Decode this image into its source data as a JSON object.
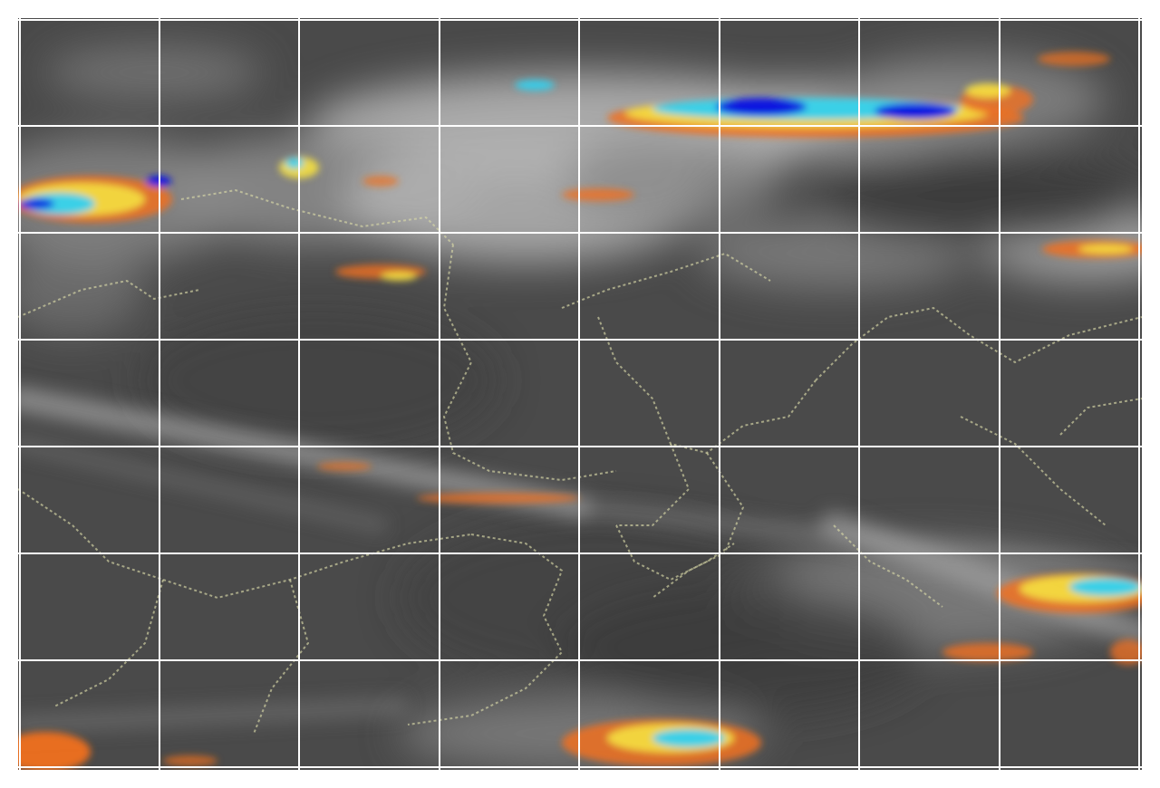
{
  "map": {
    "kind": "satellite-infrared-imagery",
    "colors": {
      "background_base": "#4a4a4a",
      "cloud_gray_light": "#b4b4b4",
      "cloud_gray_mid": "#8a8a8a",
      "cloud_gray_dark": "#3c3c3c",
      "enhancement_orange": "#f07020",
      "enhancement_yellow": "#f5e040",
      "enhancement_cyan": "#30d0f0",
      "enhancement_blue": "#0818e0",
      "border_lines": "#d8d8a8",
      "grid_lines": "#ffffff"
    },
    "grid": {
      "visible": true,
      "columns": 8,
      "rows": 7
    },
    "features": {
      "political_borders": true,
      "enhanced_cold_cloud_tops": true,
      "labels": []
    }
  }
}
